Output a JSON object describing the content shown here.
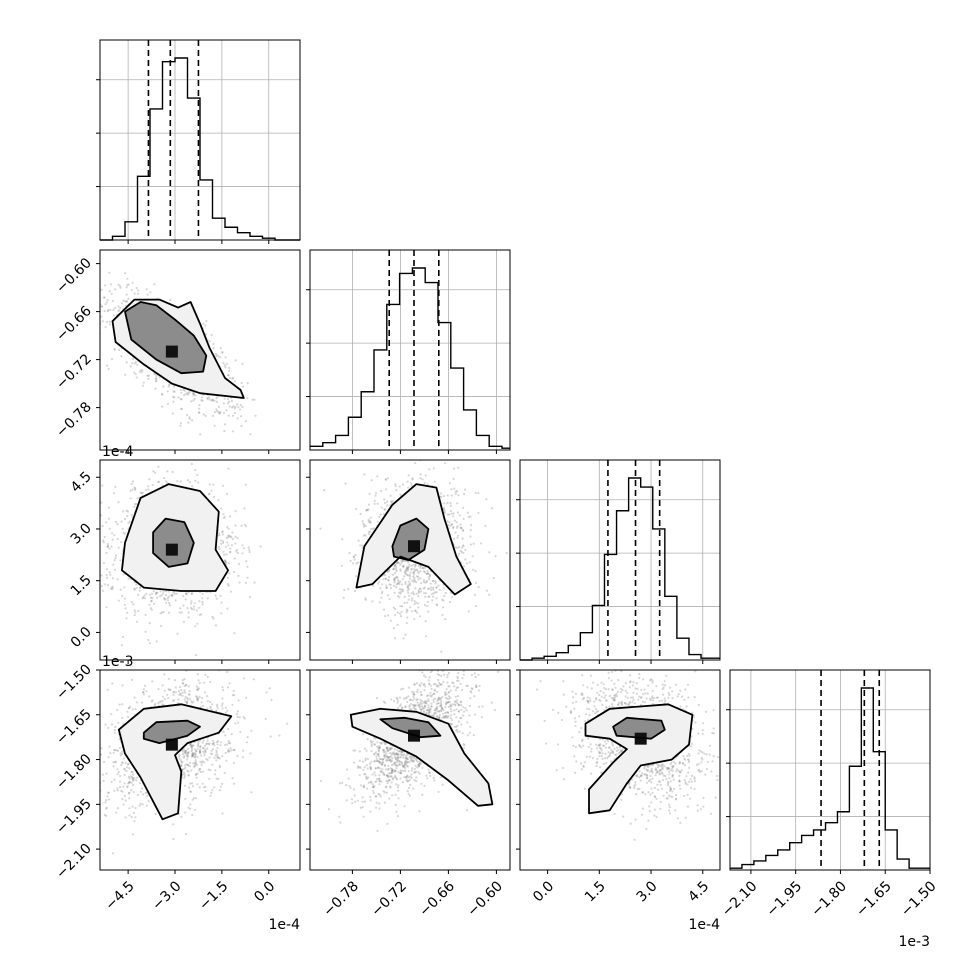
{
  "chart_data": {
    "type": "corner",
    "grid": true,
    "quantiles": [
      0.16,
      0.5,
      0.84
    ],
    "parameters": [
      {
        "range": [
          -5.4,
          1.0
        ],
        "ticks": [
          "-4.5",
          "-3.0",
          "-1.5",
          "0.0"
        ],
        "tick_values": [
          -4.5,
          -3.0,
          -1.5,
          0.0
        ],
        "offset_label": "1e-4",
        "quantile_values": [
          -3.85,
          -3.15,
          -2.25
        ]
      },
      {
        "range": [
          -0.833,
          -0.583
        ],
        "ticks": [
          "-0.78",
          "-0.72",
          "-0.66",
          "-0.60"
        ],
        "tick_values": [
          -0.78,
          -0.72,
          -0.66,
          -0.6
        ],
        "offset_label": "",
        "quantile_values": [
          -0.734,
          -0.703,
          -0.672
        ]
      },
      {
        "range": [
          -0.8,
          5.0
        ],
        "ticks": [
          "0.0",
          "1.5",
          "3.0",
          "4.5"
        ],
        "tick_values": [
          0.0,
          1.5,
          3.0,
          4.5
        ],
        "offset_label": "1e-4",
        "quantile_values": [
          1.75,
          2.55,
          3.25
        ]
      },
      {
        "range": [
          -2.17,
          -1.5
        ],
        "ticks": [
          "-2.10",
          "-1.95",
          "-1.80",
          "-1.65",
          "-1.50"
        ],
        "tick_values": [
          -2.1,
          -1.95,
          -1.8,
          -1.65,
          -1.5
        ],
        "offset_label": "1e-3",
        "quantile_values": [
          -1.865,
          -1.72,
          -1.67
        ]
      }
    ],
    "histograms": [
      {
        "param": 0,
        "bin_edges": [
          -5.4,
          -5.0,
          -4.6,
          -4.2,
          -3.8,
          -3.4,
          -3.0,
          -2.6,
          -2.2,
          -1.8,
          -1.4,
          -1.0,
          -0.6,
          -0.2,
          0.2,
          0.6,
          1.0
        ],
        "counts_fraction": [
          0.0,
          0.02,
          0.1,
          0.35,
          0.72,
          0.98,
          1.0,
          0.78,
          0.33,
          0.12,
          0.07,
          0.04,
          0.02,
          0.01,
          0.0,
          0.0
        ]
      },
      {
        "param": 1,
        "bin_edges": [
          -0.833,
          -0.817,
          -0.801,
          -0.785,
          -0.769,
          -0.753,
          -0.737,
          -0.721,
          -0.705,
          -0.689,
          -0.673,
          -0.657,
          -0.641,
          -0.625,
          -0.609,
          -0.593,
          -0.583
        ],
        "counts_fraction": [
          0.02,
          0.04,
          0.08,
          0.18,
          0.32,
          0.55,
          0.8,
          0.97,
          1.0,
          0.92,
          0.7,
          0.45,
          0.22,
          0.08,
          0.02,
          0.01
        ]
      },
      {
        "param": 2,
        "bin_edges": [
          -0.8,
          -0.45,
          -0.1,
          0.25,
          0.6,
          0.95,
          1.3,
          1.65,
          2.0,
          2.35,
          2.7,
          3.05,
          3.4,
          3.75,
          4.1,
          4.45,
          5.0
        ],
        "counts_fraction": [
          0.0,
          0.01,
          0.02,
          0.04,
          0.08,
          0.15,
          0.3,
          0.58,
          0.82,
          1.0,
          0.95,
          0.72,
          0.35,
          0.12,
          0.03,
          0.01
        ]
      },
      {
        "param": 3,
        "bin_edges": [
          -2.17,
          -2.13,
          -2.09,
          -2.05,
          -2.01,
          -1.97,
          -1.93,
          -1.89,
          -1.85,
          -1.81,
          -1.77,
          -1.73,
          -1.69,
          -1.65,
          -1.61,
          -1.57,
          -1.5
        ],
        "counts_fraction": [
          0.01,
          0.03,
          0.05,
          0.08,
          0.11,
          0.15,
          0.19,
          0.22,
          0.26,
          0.32,
          0.57,
          1.0,
          0.65,
          0.22,
          0.06,
          0.01
        ]
      }
    ],
    "pairs": [
      {
        "x_param": 0,
        "y_param": 1,
        "mean": [
          -3.1,
          -0.71
        ],
        "std": [
          0.9,
          0.032
        ],
        "correlation": -0.72,
        "contours": [
          [
            [
              -4.6,
              -0.66
            ],
            [
              -4.1,
              -0.648
            ],
            [
              -3.6,
              -0.652
            ],
            [
              -3.0,
              -0.67
            ],
            [
              -2.4,
              -0.69
            ],
            [
              -2.0,
              -0.715
            ],
            [
              -2.1,
              -0.735
            ],
            [
              -2.8,
              -0.737
            ],
            [
              -3.6,
              -0.72
            ],
            [
              -4.4,
              -0.695
            ]
          ],
          [
            [
              -5.0,
              -0.672
            ],
            [
              -4.3,
              -0.645
            ],
            [
              -3.5,
              -0.645
            ],
            [
              -2.9,
              -0.655
            ],
            [
              -2.5,
              -0.648
            ],
            [
              -2.2,
              -0.675
            ],
            [
              -1.9,
              -0.705
            ],
            [
              -1.4,
              -0.743
            ],
            [
              -0.9,
              -0.758
            ],
            [
              -0.8,
              -0.768
            ],
            [
              -2.2,
              -0.762
            ],
            [
              -3.1,
              -0.75
            ],
            [
              -4.0,
              -0.726
            ],
            [
              -4.9,
              -0.698
            ]
          ]
        ]
      },
      {
        "x_param": 0,
        "y_param": 2,
        "mean": [
          -3.1,
          2.4
        ],
        "std": [
          0.85,
          0.8
        ],
        "correlation": 0.05,
        "contours": [
          [
            [
              -3.7,
              2.9
            ],
            [
              -3.3,
              3.3
            ],
            [
              -2.7,
              3.2
            ],
            [
              -2.4,
              2.6
            ],
            [
              -2.6,
              2.0
            ],
            [
              -3.2,
              1.9
            ],
            [
              -3.7,
              2.3
            ]
          ],
          [
            [
              -4.6,
              2.6
            ],
            [
              -4.1,
              3.9
            ],
            [
              -3.2,
              4.3
            ],
            [
              -2.2,
              4.1
            ],
            [
              -1.6,
              3.5
            ],
            [
              -1.7,
              2.4
            ],
            [
              -1.3,
              1.8
            ],
            [
              -1.7,
              1.2
            ],
            [
              -2.8,
              1.2
            ],
            [
              -4.0,
              1.3
            ],
            [
              -4.7,
              1.8
            ]
          ]
        ]
      },
      {
        "x_param": 1,
        "y_param": 2,
        "mean": [
          -0.703,
          2.5
        ],
        "std": [
          0.03,
          0.8
        ],
        "correlation": 0.0,
        "contours": [
          [
            [
              -0.73,
              2.5
            ],
            [
              -0.72,
              3.1
            ],
            [
              -0.7,
              3.3
            ],
            [
              -0.685,
              3.0
            ],
            [
              -0.69,
              2.4
            ],
            [
              -0.71,
              2.1
            ],
            [
              -0.728,
              2.2
            ]
          ],
          [
            [
              -0.775,
              1.3
            ],
            [
              -0.765,
              2.5
            ],
            [
              -0.73,
              3.7
            ],
            [
              -0.7,
              4.3
            ],
            [
              -0.675,
              4.2
            ],
            [
              -0.665,
              3.3
            ],
            [
              -0.65,
              2.2
            ],
            [
              -0.632,
              1.4
            ],
            [
              -0.652,
              1.1
            ],
            [
              -0.685,
              1.9
            ],
            [
              -0.72,
              2.2
            ],
            [
              -0.755,
              1.4
            ]
          ]
        ]
      },
      {
        "x_param": 0,
        "y_param": 3,
        "mean": [
          -3.1,
          -1.75
        ],
        "std": [
          0.9,
          0.09
        ],
        "correlation": 0.3,
        "contours": [
          [
            [
              -4.0,
              -1.71
            ],
            [
              -3.6,
              -1.675
            ],
            [
              -2.6,
              -1.67
            ],
            [
              -2.2,
              -1.69
            ],
            [
              -2.6,
              -1.72
            ],
            [
              -3.5,
              -1.745
            ],
            [
              -4.0,
              -1.73
            ]
          ],
          [
            [
              -4.8,
              -1.7
            ],
            [
              -4.0,
              -1.63
            ],
            [
              -2.8,
              -1.615
            ],
            [
              -1.2,
              -1.655
            ],
            [
              -1.6,
              -1.71
            ],
            [
              -2.6,
              -1.745
            ],
            [
              -3.0,
              -1.785
            ],
            [
              -2.8,
              -1.84
            ],
            [
              -2.9,
              -1.98
            ],
            [
              -3.4,
              -2.0
            ],
            [
              -4.1,
              -1.86
            ],
            [
              -4.6,
              -1.78
            ]
          ]
        ]
      },
      {
        "x_param": 1,
        "y_param": 3,
        "mean": [
          -0.703,
          -1.72
        ],
        "std": [
          0.03,
          0.09
        ],
        "correlation": 0.6,
        "contours": [
          [
            [
              -0.745,
              -1.665
            ],
            [
              -0.715,
              -1.66
            ],
            [
              -0.685,
              -1.675
            ],
            [
              -0.67,
              -1.72
            ],
            [
              -0.695,
              -1.725
            ],
            [
              -0.73,
              -1.695
            ]
          ],
          [
            [
              -0.782,
              -1.65
            ],
            [
              -0.745,
              -1.63
            ],
            [
              -0.7,
              -1.64
            ],
            [
              -0.66,
              -1.68
            ],
            [
              -0.64,
              -1.78
            ],
            [
              -0.61,
              -1.88
            ],
            [
              -0.605,
              -1.95
            ],
            [
              -0.623,
              -1.955
            ],
            [
              -0.66,
              -1.87
            ],
            [
              -0.7,
              -1.79
            ],
            [
              -0.745,
              -1.73
            ],
            [
              -0.78,
              -1.69
            ]
          ]
        ]
      },
      {
        "x_param": 2,
        "y_param": 3,
        "mean": [
          2.7,
          -1.73
        ],
        "std": [
          0.8,
          0.09
        ],
        "correlation": -0.3,
        "contours": [
          [
            [
              1.9,
              -1.69
            ],
            [
              2.3,
              -1.66
            ],
            [
              3.3,
              -1.67
            ],
            [
              3.4,
              -1.7
            ],
            [
              3.0,
              -1.73
            ],
            [
              2.0,
              -1.72
            ]
          ],
          [
            [
              1.1,
              -1.68
            ],
            [
              1.8,
              -1.63
            ],
            [
              3.5,
              -1.615
            ],
            [
              4.2,
              -1.65
            ],
            [
              4.1,
              -1.75
            ],
            [
              3.6,
              -1.8
            ],
            [
              2.7,
              -1.82
            ],
            [
              2.3,
              -1.88
            ],
            [
              1.8,
              -1.97
            ],
            [
              1.2,
              -1.98
            ],
            [
              1.2,
              -1.9
            ],
            [
              1.9,
              -1.81
            ],
            [
              2.3,
              -1.765
            ],
            [
              1.8,
              -1.73
            ],
            [
              1.1,
              -1.72
            ]
          ]
        ]
      }
    ]
  }
}
